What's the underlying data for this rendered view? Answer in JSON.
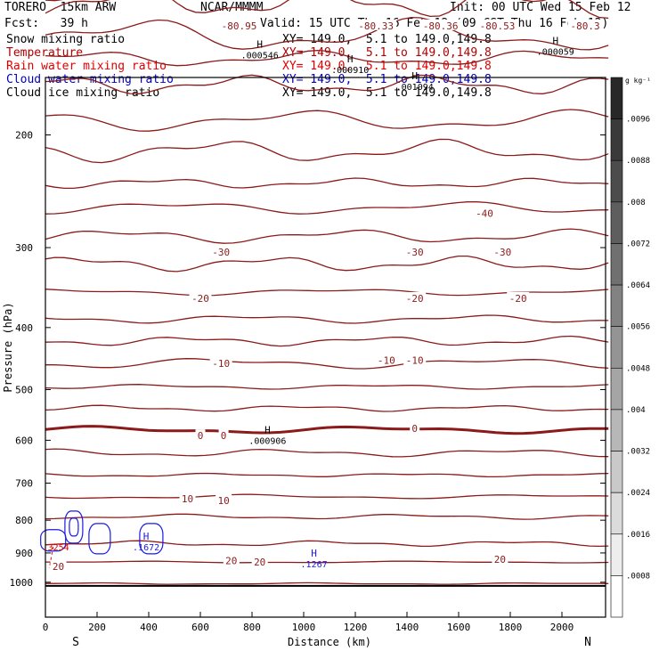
{
  "header": {
    "model": "TORERO  15km ARW",
    "center": "NCAR/MMMM",
    "init": "Init: 00 UTC Wed 15 Feb 12",
    "fcst": "Fcst:   39 h",
    "valid": "Valid: 15 UTC Thu 16 Feb 12 (09 CST Thu 16 Feb 12)"
  },
  "legend": [
    {
      "name": "Snow mixing ratio",
      "xy": "XY= 149.0,  5.1 to 149.0,149.8",
      "color": "#000000"
    },
    {
      "name": "Temperature",
      "xy": "XY= 149.0,  5.1 to 149.0,149.8",
      "color": "#b00000"
    },
    {
      "name": "Rain water mixing ratio",
      "xy": "XY= 149.0,  5.1 to 149.0,149.8",
      "color": "#e00000"
    },
    {
      "name": "Cloud water mixing ratio",
      "xy": "XY= 149.0,  5.1 to 149.0,149.8",
      "color": "#0000c0"
    },
    {
      "name": "Cloud ice mixing ratio",
      "xy": "XY= 149.0,  5.1 to 149.0,149.8",
      "color": "#000000"
    }
  ],
  "chart_data": {
    "type": "contour",
    "xlabel": "Distance (km)",
    "ylabel": "Pressure (hPa)",
    "xlim": [
      0,
      2180
    ],
    "ylim": [
      1050,
      100
    ],
    "yscale": "log",
    "x_ticks": [
      0,
      200,
      400,
      600,
      800,
      1000,
      1200,
      1400,
      1600,
      1800,
      2000
    ],
    "y_ticks": [
      200,
      300,
      400,
      500,
      600,
      700,
      800,
      900,
      1000
    ],
    "x_end_labels": {
      "left": "S",
      "right": "N"
    },
    "colorbar": {
      "unit": "g kg⁻¹",
      "ticks": [
        ".0096",
        ".0088",
        ".008",
        ".0072",
        ".0064",
        ".0056",
        ".0048",
        ".004",
        ".0032",
        ".0024",
        ".0016",
        ".0008"
      ]
    },
    "temperature_contour_labels": [
      {
        "text": "-80.95",
        "x": 750,
        "p": 135
      },
      {
        "text": "-80.33",
        "x": 1280,
        "p": 135
      },
      {
        "text": "-80.36",
        "x": 1530,
        "p": 135
      },
      {
        "text": "-80.53",
        "x": 1750,
        "p": 135
      },
      {
        "text": "-80.3",
        "x": 2090,
        "p": 135
      },
      {
        "text": "-40",
        "x": 1700,
        "p": 265
      },
      {
        "text": "-30",
        "x": 680,
        "p": 305
      },
      {
        "text": "-30",
        "x": 1430,
        "p": 305
      },
      {
        "text": "-30",
        "x": 1770,
        "p": 305
      },
      {
        "text": "-20",
        "x": 600,
        "p": 360
      },
      {
        "text": "-20",
        "x": 1430,
        "p": 360
      },
      {
        "text": "-20",
        "x": 1830,
        "p": 360
      },
      {
        "text": "-10",
        "x": 680,
        "p": 455
      },
      {
        "text": "-10",
        "x": 1320,
        "p": 450
      },
      {
        "text": "-10",
        "x": 1430,
        "p": 450
      },
      {
        "text": "0",
        "x": 600,
        "p": 590
      },
      {
        "text": "0",
        "x": 690,
        "p": 590
      },
      {
        "text": "0",
        "x": 1430,
        "p": 575
      },
      {
        "text": "10",
        "x": 550,
        "p": 740
      },
      {
        "text": "10",
        "x": 690,
        "p": 745
      },
      {
        "text": "20",
        "x": 50,
        "p": 945
      },
      {
        "text": "20",
        "x": 720,
        "p": 925
      },
      {
        "text": "20",
        "x": 830,
        "p": 930
      },
      {
        "text": "20",
        "x": 1760,
        "p": 920
      }
    ],
    "maxima_labels": [
      {
        "mark": "H",
        "value": ".000546",
        "x": 830,
        "p": 150
      },
      {
        "mark": "H",
        "value": ".000910",
        "x": 1180,
        "p": 158
      },
      {
        "mark": "H",
        "value": ".001094",
        "x": 1430,
        "p": 168
      },
      {
        "mark": "H",
        "value": ".000059",
        "x": 1975,
        "p": 148
      },
      {
        "mark": "H",
        "value": ".000906",
        "x": 860,
        "p": 600
      },
      {
        "mark": "H",
        "value": ".1672",
        "x": 390,
        "p": 880
      },
      {
        "mark": "H",
        "value": ".1267",
        "x": 1040,
        "p": 935
      },
      {
        "mark": "",
        "value": ".3254",
        "x": 40,
        "p": 880
      }
    ]
  }
}
